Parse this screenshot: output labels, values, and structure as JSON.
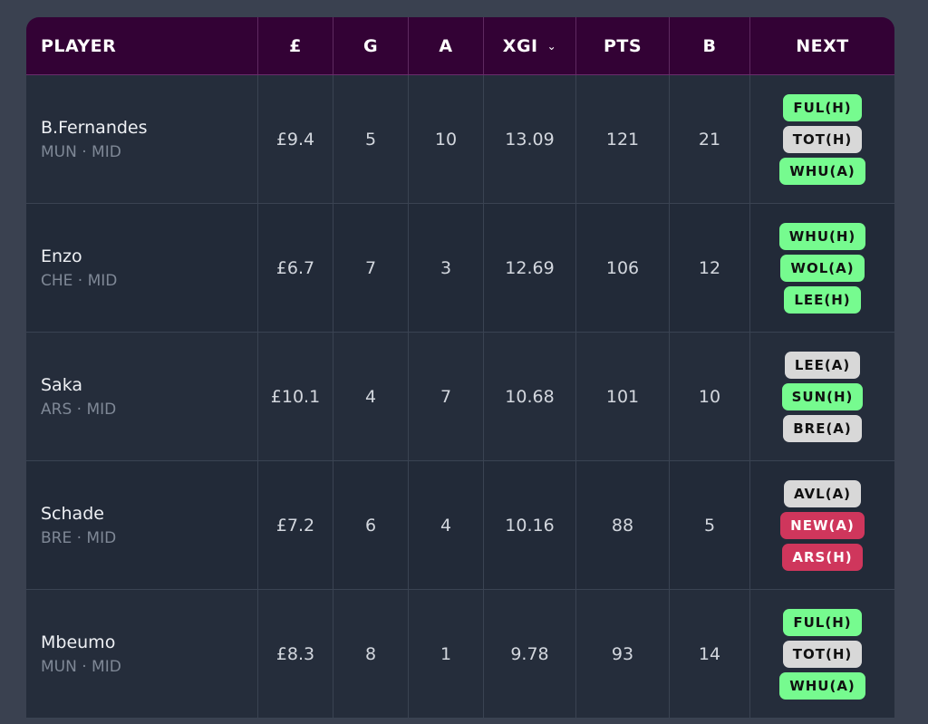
{
  "header": {
    "columns": [
      "PLAYER",
      "£",
      "G",
      "A",
      "XGI",
      "PTS",
      "B",
      "NEXT"
    ],
    "sorted_column": "XGI",
    "sort_icon": "chevron-down-icon"
  },
  "colors": {
    "easy": "#76fb8f",
    "neutral": "#d8d8d8",
    "hard": "#cf365c",
    "header_bg": "#330235"
  },
  "rows": [
    {
      "name": "B.Fernandes",
      "meta": "MUN · MID",
      "price": "£9.4",
      "g": "5",
      "a": "10",
      "xgi": "13.09",
      "pts": "121",
      "b": "21",
      "next": [
        {
          "label": "FUL(H)",
          "difficulty": "easy"
        },
        {
          "label": "TOT(H)",
          "difficulty": "mid"
        },
        {
          "label": "WHU(A)",
          "difficulty": "easy"
        }
      ]
    },
    {
      "name": "Enzo",
      "meta": "CHE · MID",
      "price": "£6.7",
      "g": "7",
      "a": "3",
      "xgi": "12.69",
      "pts": "106",
      "b": "12",
      "next": [
        {
          "label": "WHU(H)",
          "difficulty": "easy"
        },
        {
          "label": "WOL(A)",
          "difficulty": "easy"
        },
        {
          "label": "LEE(H)",
          "difficulty": "easy"
        }
      ]
    },
    {
      "name": "Saka",
      "meta": "ARS · MID",
      "price": "£10.1",
      "g": "4",
      "a": "7",
      "xgi": "10.68",
      "pts": "101",
      "b": "10",
      "next": [
        {
          "label": "LEE(A)",
          "difficulty": "mid"
        },
        {
          "label": "SUN(H)",
          "difficulty": "easy"
        },
        {
          "label": "BRE(A)",
          "difficulty": "mid"
        }
      ]
    },
    {
      "name": "Schade",
      "meta": "BRE · MID",
      "price": "£7.2",
      "g": "6",
      "a": "4",
      "xgi": "10.16",
      "pts": "88",
      "b": "5",
      "next": [
        {
          "label": "AVL(A)",
          "difficulty": "mid"
        },
        {
          "label": "NEW(A)",
          "difficulty": "hard"
        },
        {
          "label": "ARS(H)",
          "difficulty": "hard"
        }
      ]
    },
    {
      "name": "Mbeumo",
      "meta": "MUN · MID",
      "price": "£8.3",
      "g": "8",
      "a": "1",
      "xgi": "9.78",
      "pts": "93",
      "b": "14",
      "next": [
        {
          "label": "FUL(H)",
          "difficulty": "easy"
        },
        {
          "label": "TOT(H)",
          "difficulty": "mid"
        },
        {
          "label": "WHU(A)",
          "difficulty": "easy"
        }
      ]
    }
  ]
}
